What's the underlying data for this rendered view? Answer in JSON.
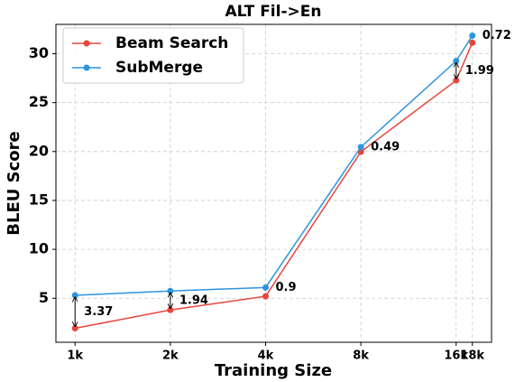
{
  "chart_data": {
    "type": "line",
    "title": "ALT Fil->En",
    "xlabel": "Training Size",
    "ylabel": "BLEU Score",
    "x": [
      1000,
      2000,
      4000,
      8000,
      16000,
      18000
    ],
    "xscale": "log",
    "xlim": [
      870,
      20700
    ],
    "xticks": [
      {
        "value": 1000,
        "label": "1k"
      },
      {
        "value": 2000,
        "label": "2k"
      },
      {
        "value": 4000,
        "label": "4k"
      },
      {
        "value": 8000,
        "label": "8k"
      },
      {
        "value": 16000,
        "label": "16k"
      },
      {
        "value": 18000,
        "label": "18k"
      }
    ],
    "ylim": [
      0.5,
      33
    ],
    "yticks": [
      5,
      10,
      15,
      20,
      25,
      30
    ],
    "grid": true,
    "legend": "upper left",
    "series": [
      {
        "name": "Beam Search",
        "color": "#e8453c",
        "values": [
          1.93,
          3.8,
          5.2,
          19.97,
          27.27,
          31.13
        ]
      },
      {
        "name": "SubMerge",
        "color": "#2e94e0",
        "values": [
          5.3,
          5.74,
          6.1,
          20.46,
          29.26,
          31.85
        ]
      }
    ],
    "annotations": [
      "3.37",
      "1.94",
      "0.9",
      "0.49",
      "1.99",
      "0.72"
    ]
  }
}
